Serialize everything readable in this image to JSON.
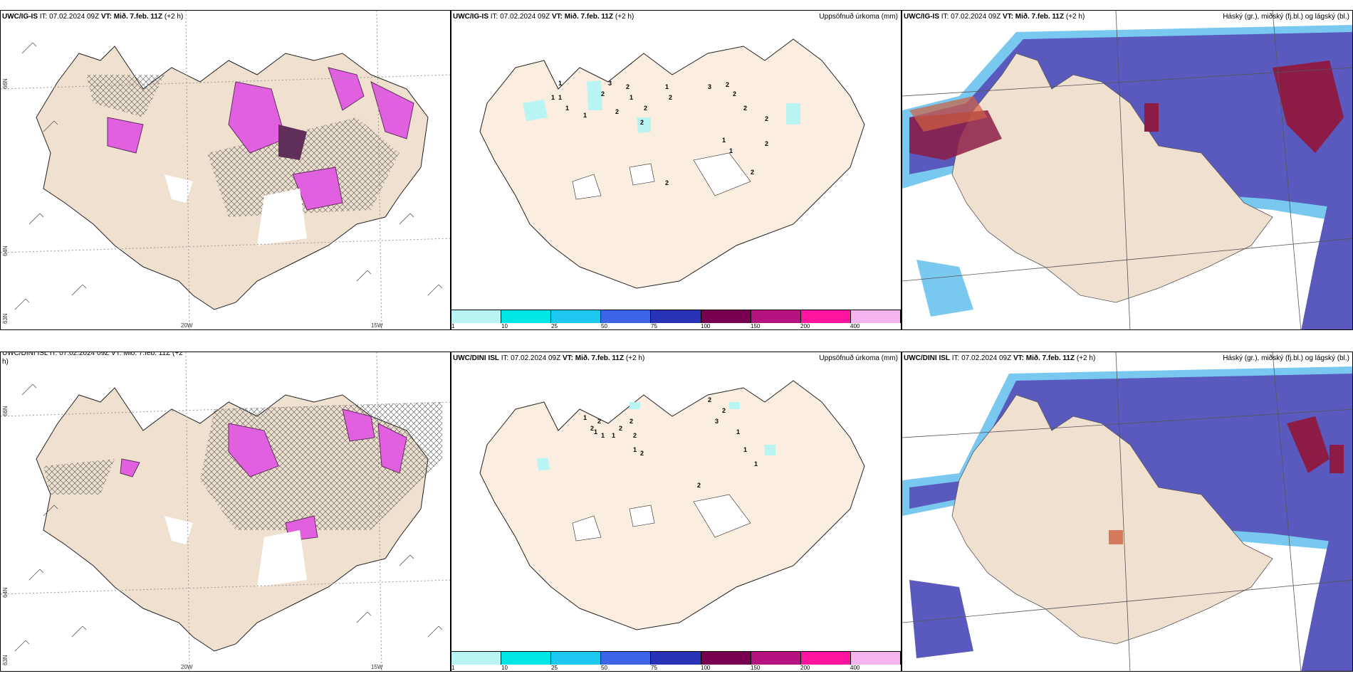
{
  "panels": {
    "p1": {
      "model": "UWC/IG-IS",
      "it_prefix": "IT:",
      "it": "07.02.2024 09Z",
      "vt_prefix": "VT:",
      "vt": "Mið. 7.feb. 11Z",
      "lead": "(+2 h)"
    },
    "p2": {
      "model": "UWC/IG-IS",
      "it_prefix": "IT:",
      "it": "07.02.2024 09Z",
      "vt_prefix": "VT:",
      "vt": "Mið. 7.feb. 11Z",
      "lead": "(+2 h)",
      "right": "Uppsöfnuð úrkoma (mm)"
    },
    "p3": {
      "model": "UWC/IG-IS",
      "it_prefix": "IT:",
      "it": "07.02.2024 09Z",
      "vt_prefix": "VT:",
      "vt": "Mið. 7.feb. 11Z",
      "lead": "(+2 h)",
      "right": "Háský (gr.), miðský (fj.bl.) og lágský (bl.)"
    },
    "p4": {
      "header": "UWC/DINI ISL IT: 07.02.2024 09Z VT: Mið. 7.feb. 11Z (+2",
      "header2": "h)"
    },
    "p5": {
      "model": "UWC/DINI ISL",
      "it_prefix": "IT:",
      "it": "07.02.2024 09Z",
      "vt_prefix": "VT:",
      "vt": "Mið. 7.feb. 11Z",
      "lead": "(+2 h)",
      "right": "Uppsöfnuð úrkoma (mm)"
    },
    "p6": {
      "model": "UWC/DINI ISL",
      "it_prefix": "IT:",
      "it": "07.02.2024 09Z",
      "vt_prefix": "VT:",
      "vt": "Mið. 7.feb. 11Z",
      "lead": "(+2 h)",
      "right": "Háský (gr.), miðský (fj.bl.) og lágský (bl.)"
    }
  },
  "geo_labels": {
    "lat66": "66N",
    "lat64": "64N",
    "lat63": "63N",
    "lon20": "20W",
    "lon15": "15W"
  },
  "colorbar": {
    "labels": [
      "1",
      "10",
      "25",
      "50",
      "75",
      "100",
      "150",
      "200",
      "400"
    ],
    "colors": [
      "#b8f4f4",
      "#00e6e6",
      "#1ec8f0",
      "#3c64e6",
      "#2832b4",
      "#780050",
      "#b4147f",
      "#ff14a0",
      "#f6b4f0"
    ]
  },
  "precip_top_values": [
    "1",
    "1",
    "1",
    "3",
    "2",
    "2",
    "1",
    "2",
    "1",
    "2",
    "2",
    "1",
    "2",
    "3",
    "2",
    "2",
    "2",
    "2",
    "1",
    "1",
    "2",
    "2",
    "2",
    "1"
  ],
  "precip_bottom_values": [
    "1",
    "2",
    "2",
    "1",
    "1",
    "1",
    "2",
    "2",
    "2",
    "1",
    "2",
    "2",
    "2",
    "3",
    "1",
    "1",
    "1",
    "2"
  ],
  "colors": {
    "land": "#f0e0d0",
    "land_precip": "#fbeee0",
    "sea": "#ffffff",
    "pink": "#e060e0",
    "dark_purple": "#60305a",
    "high_cloud": "#8c1c46",
    "mid_cloud": "#5a5abe",
    "low_cloud": "#78c8f0"
  }
}
